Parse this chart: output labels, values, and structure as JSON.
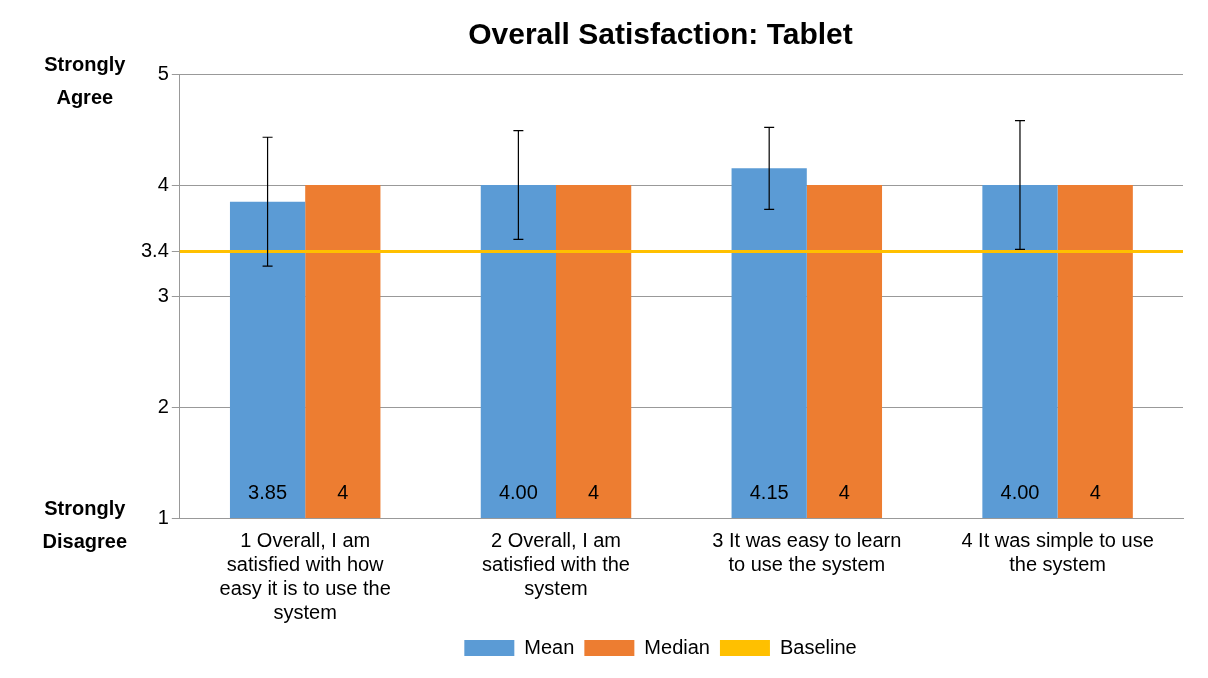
{
  "chart_data": {
    "type": "bar",
    "title": "Overall Satisfaction: Tablet",
    "categories": [
      "1 Overall, I am satisfied with how easy it is to use the system",
      "2 Overall, I am satisfied with the system",
      "3 It was easy to learn to use the system",
      "4 It was simple to use the system"
    ],
    "series": [
      {
        "name": "Mean",
        "color": "#5b9bd5",
        "values": [
          3.85,
          4.0,
          4.15,
          4.0
        ],
        "errors": [
          0.58,
          0.49,
          0.37,
          0.58
        ],
        "value_labels": [
          "3.85",
          "4.00",
          "4.15",
          "4.00"
        ]
      },
      {
        "name": "Median",
        "color": "#ed7d31",
        "values": [
          4,
          4,
          4,
          4
        ],
        "value_labels": [
          "4",
          "4",
          "4",
          "4"
        ]
      }
    ],
    "ylim": [
      1,
      5
    ],
    "yticks": [
      1,
      2,
      3,
      3.4,
      4,
      5
    ],
    "grid": "y",
    "legend": "bottom",
    "ref_lines": [
      {
        "axis": "y",
        "value": 3.4,
        "label": "Baseline",
        "color": "#ffc000"
      }
    ],
    "annotations": [
      "Strongly Agree",
      "Strongly Disagree"
    ]
  }
}
